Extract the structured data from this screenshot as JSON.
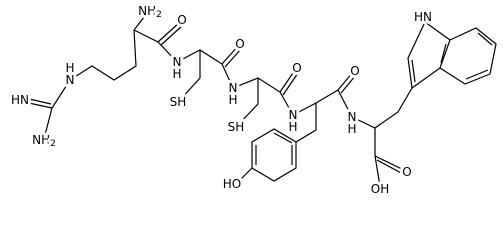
{
  "molecule": {
    "labels": [
      "NH2",
      "O",
      "N",
      "H",
      "SH",
      "O",
      "N",
      "H",
      "SH",
      "O",
      "N",
      "H",
      "HO",
      "O",
      "N",
      "H",
      "HN",
      "O",
      "OH",
      "N",
      "H",
      "HN",
      "NH2"
    ]
  }
}
